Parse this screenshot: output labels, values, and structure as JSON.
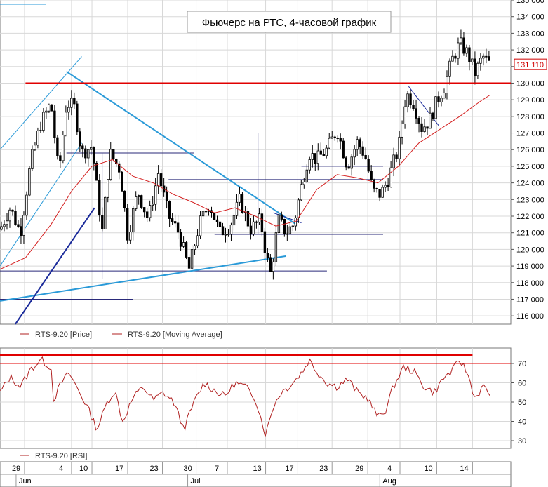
{
  "chart_data": {
    "type": "candlestick",
    "title": "Фьючерс на РТС, 4-часовой график",
    "colors": {
      "candle": "#000000",
      "moving_average": "#d42020",
      "level_line": "#e00000",
      "trend_light": "#2a9ad8",
      "trend_dark": "#1a2a9a",
      "horizontal": "#2a2a7a",
      "rsi": "#b02020",
      "grid": "#d8d8d8"
    },
    "price_axis": {
      "min": 115500,
      "max": 135000,
      "ticks": [
        "135 000",
        "134 000",
        "133 000",
        "132 000",
        "131 000",
        "130 000",
        "129 000",
        "128 000",
        "127 000",
        "126 000",
        "125 000",
        "124 000",
        "123 000",
        "122 000",
        "121 000",
        "120 000",
        "119 000",
        "118 000",
        "117 000",
        "116 000"
      ]
    },
    "current_price": {
      "label": "131 110",
      "value": 131110
    },
    "resistance_level": 130000,
    "rsi_axis": {
      "min": 26,
      "max": 78,
      "ticks": [
        "70",
        "60",
        "50",
        "40",
        "30"
      ],
      "upper_level": 70
    },
    "x_axis": {
      "day_labels": [
        "29",
        "4",
        "10",
        "17",
        "23",
        "30",
        "7",
        "13",
        "17",
        "23",
        "29",
        "4",
        "10",
        "14"
      ],
      "month_labels": [
        "Jun",
        "Jul",
        "Aug"
      ]
    },
    "legend_price": [
      "RTS-9.20 [Price]",
      "RTS-9.20 [Moving Average]"
    ],
    "legend_rsi": [
      "RTS-9.20 [RSI]"
    ],
    "series": [
      {
        "name": "RTS-9.20 [Price]",
        "close_path": [
          [
            0,
            121200
          ],
          [
            0.02,
            122500
          ],
          [
            0.04,
            121000
          ],
          [
            0.06,
            125200
          ],
          [
            0.08,
            127600
          ],
          [
            0.1,
            128800
          ],
          [
            0.115,
            124500
          ],
          [
            0.13,
            128800
          ],
          [
            0.145,
            128600
          ],
          [
            0.16,
            125800
          ],
          [
            0.18,
            126200
          ],
          [
            0.2,
            121000
          ],
          [
            0.215,
            125800
          ],
          [
            0.235,
            124800
          ],
          [
            0.25,
            120800
          ],
          [
            0.27,
            123500
          ],
          [
            0.29,
            121800
          ],
          [
            0.31,
            124600
          ],
          [
            0.33,
            122000
          ],
          [
            0.35,
            121000
          ],
          [
            0.37,
            118800
          ],
          [
            0.39,
            121500
          ],
          [
            0.41,
            122800
          ],
          [
            0.43,
            121000
          ],
          [
            0.45,
            121400
          ],
          [
            0.47,
            123000
          ],
          [
            0.49,
            121200
          ],
          [
            0.51,
            121800
          ],
          [
            0.52,
            119800
          ],
          [
            0.53,
            118500
          ],
          [
            0.545,
            121800
          ],
          [
            0.56,
            121000
          ],
          [
            0.575,
            121500
          ],
          [
            0.59,
            123800
          ],
          [
            0.605,
            125800
          ],
          [
            0.62,
            125400
          ],
          [
            0.64,
            126000
          ],
          [
            0.66,
            127200
          ],
          [
            0.68,
            125000
          ],
          [
            0.7,
            126500
          ],
          [
            0.715,
            125600
          ],
          [
            0.73,
            123500
          ],
          [
            0.745,
            123300
          ],
          [
            0.76,
            124200
          ],
          [
            0.77,
            125200
          ],
          [
            0.78,
            126000
          ],
          [
            0.795,
            129400
          ],
          [
            0.81,
            128800
          ],
          [
            0.825,
            127300
          ],
          [
            0.84,
            127700
          ],
          [
            0.855,
            128900
          ],
          [
            0.87,
            129800
          ],
          [
            0.885,
            131400
          ],
          [
            0.9,
            132400
          ],
          [
            0.915,
            131800
          ],
          [
            0.93,
            130600
          ],
          [
            0.945,
            131600
          ],
          [
            0.96,
            131100
          ]
        ],
        "volatility": 900
      },
      {
        "name": "RTS-9.20 [Moving Average]",
        "path": [
          [
            0,
            118800
          ],
          [
            0.05,
            119500
          ],
          [
            0.1,
            121500
          ],
          [
            0.14,
            123500
          ],
          [
            0.18,
            125000
          ],
          [
            0.22,
            125400
          ],
          [
            0.26,
            124400
          ],
          [
            0.3,
            124000
          ],
          [
            0.34,
            123300
          ],
          [
            0.38,
            122800
          ],
          [
            0.42,
            122200
          ],
          [
            0.46,
            122500
          ],
          [
            0.5,
            122000
          ],
          [
            0.54,
            121400
          ],
          [
            0.58,
            121700
          ],
          [
            0.62,
            123600
          ],
          [
            0.66,
            124500
          ],
          [
            0.7,
            124300
          ],
          [
            0.74,
            124000
          ],
          [
            0.78,
            125000
          ],
          [
            0.82,
            126400
          ],
          [
            0.86,
            127200
          ],
          [
            0.9,
            128000
          ],
          [
            0.94,
            128900
          ],
          [
            0.96,
            129300
          ]
        ]
      },
      {
        "name": "RTS-9.20 [RSI]",
        "path": [
          [
            0,
            55
          ],
          [
            0.02,
            63
          ],
          [
            0.04,
            58
          ],
          [
            0.06,
            67
          ],
          [
            0.08,
            72
          ],
          [
            0.1,
            68
          ],
          [
            0.105,
            51
          ],
          [
            0.12,
            60
          ],
          [
            0.135,
            65
          ],
          [
            0.15,
            58
          ],
          [
            0.17,
            48
          ],
          [
            0.19,
            36
          ],
          [
            0.21,
            50
          ],
          [
            0.225,
            56
          ],
          [
            0.24,
            40
          ],
          [
            0.26,
            52
          ],
          [
            0.28,
            58
          ],
          [
            0.3,
            51
          ],
          [
            0.32,
            55
          ],
          [
            0.34,
            50
          ],
          [
            0.36,
            36
          ],
          [
            0.38,
            50
          ],
          [
            0.4,
            60
          ],
          [
            0.42,
            56
          ],
          [
            0.44,
            53
          ],
          [
            0.46,
            60
          ],
          [
            0.48,
            58
          ],
          [
            0.5,
            52
          ],
          [
            0.52,
            33
          ],
          [
            0.535,
            48
          ],
          [
            0.55,
            55
          ],
          [
            0.565,
            58
          ],
          [
            0.58,
            62
          ],
          [
            0.595,
            67
          ],
          [
            0.605,
            72
          ],
          [
            0.62,
            66
          ],
          [
            0.64,
            60
          ],
          [
            0.66,
            58
          ],
          [
            0.68,
            62
          ],
          [
            0.7,
            55
          ],
          [
            0.72,
            52
          ],
          [
            0.74,
            42
          ],
          [
            0.755,
            46
          ],
          [
            0.77,
            58
          ],
          [
            0.79,
            68
          ],
          [
            0.81,
            66
          ],
          [
            0.83,
            58
          ],
          [
            0.85,
            55
          ],
          [
            0.87,
            63
          ],
          [
            0.885,
            66
          ],
          [
            0.9,
            72
          ],
          [
            0.915,
            65
          ],
          [
            0.93,
            52
          ],
          [
            0.945,
            58
          ],
          [
            0.96,
            54
          ]
        ]
      }
    ],
    "levels": [
      {
        "kind": "horizontal",
        "y": 125800,
        "from": 0.13,
        "to": 0.38
      },
      {
        "kind": "horizontal",
        "y": 124200,
        "from": 0.33,
        "to": 0.75
      },
      {
        "kind": "horizontal",
        "y": 125000,
        "from": 0.59,
        "to": 0.75
      },
      {
        "kind": "horizontal",
        "y": 127000,
        "from": 0.5,
        "to": 0.85
      },
      {
        "kind": "horizontal",
        "y": 120900,
        "from": 0.42,
        "to": 0.75
      },
      {
        "kind": "horizontal",
        "y": 118700,
        "from": 0.0,
        "to": 0.64
      },
      {
        "kind": "horizontal",
        "y": 117000,
        "from": 0.0,
        "to": 0.26
      },
      {
        "kind": "vertical",
        "x": 0.505,
        "from": 120900,
        "to": 127000
      },
      {
        "kind": "vertical",
        "x": 0.2,
        "from": 118200,
        "to": 125800
      }
    ],
    "trendlines": [
      {
        "style": "light",
        "from": [
          0.0,
          126000
        ],
        "to": [
          0.16,
          131600
        ]
      },
      {
        "style": "light",
        "from": [
          0.0,
          119000
        ],
        "to": [
          0.16,
          126400
        ]
      },
      {
        "style": "light_thick",
        "from": [
          0.13,
          130700
        ],
        "to": [
          0.58,
          121500
        ]
      },
      {
        "style": "light_thick",
        "from": [
          0.0,
          116900
        ],
        "to": [
          0.56,
          119600
        ]
      },
      {
        "style": "dark",
        "from": [
          0.03,
          115500
        ],
        "to": [
          0.185,
          122500
        ]
      },
      {
        "style": "thin_dark",
        "from": [
          0.535,
          122200
        ],
        "to": [
          0.59,
          121600
        ]
      },
      {
        "style": "thin_dark",
        "from": [
          0.8,
          129800
        ],
        "to": [
          0.86,
          127400
        ]
      }
    ]
  }
}
